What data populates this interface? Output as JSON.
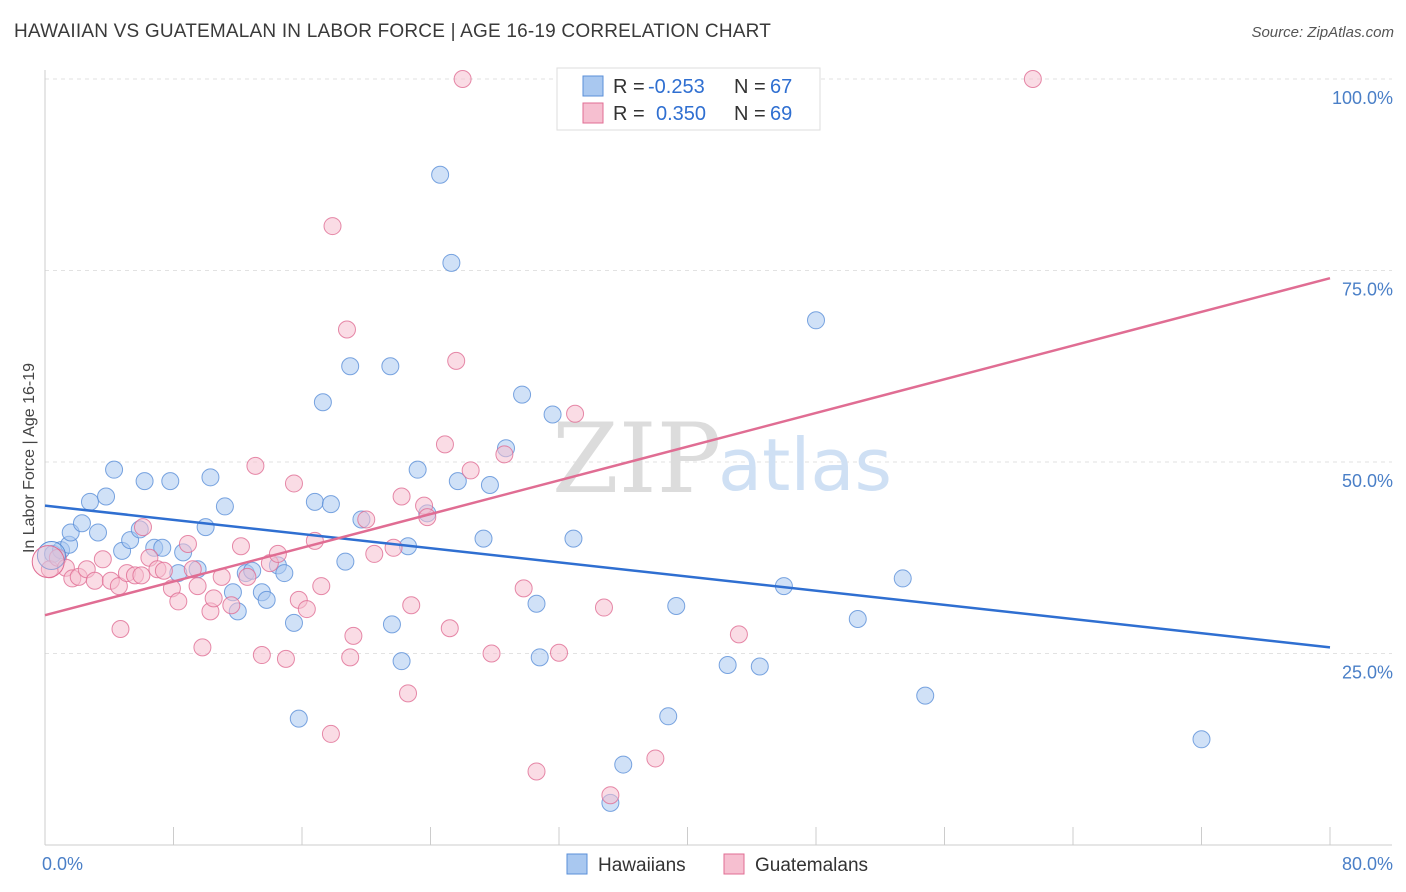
{
  "title": "HAWAIIAN VS GUATEMALAN IN LABOR FORCE | AGE 16-19 CORRELATION CHART",
  "source": "Source: ZipAtlas.com",
  "watermark": {
    "zip": "ZIP",
    "atlas": "atlas"
  },
  "legend": {
    "rows": [
      {
        "r_label": "R =",
        "r_value": "-0.253",
        "n_label": "N =",
        "n_value": "67",
        "color": "#a9c8f0",
        "stroke": "#5a8fd8"
      },
      {
        "r_label": "R =",
        "r_value": "0.350",
        "n_label": "N =",
        "n_value": "69",
        "color": "#f6bfd0",
        "stroke": "#e06d93"
      }
    ]
  },
  "bottom_legend": [
    {
      "label": "Hawaiians",
      "color": "#a9c8f0",
      "stroke": "#5a8fd8"
    },
    {
      "label": "Guatemalans",
      "color": "#f6bfd0",
      "stroke": "#e06d93"
    }
  ],
  "chart_data": {
    "type": "scatter",
    "ylabel": "In Labor Force | Age 16-19",
    "xlim": [
      0,
      80
    ],
    "ylim": [
      0,
      102
    ],
    "x_tick_labels": [
      {
        "value": 0,
        "label": "0.0%"
      },
      {
        "value": 80,
        "label": "80.0%"
      }
    ],
    "y_tick_labels": [
      {
        "value": 25,
        "label": "25.0%"
      },
      {
        "value": 50,
        "label": "50.0%"
      },
      {
        "value": 75,
        "label": "75.0%"
      },
      {
        "value": 100,
        "label": "100.0%"
      }
    ],
    "grid": true,
    "series": [
      {
        "name": "Hawaiians",
        "color": "#a9c8f0",
        "stroke": "#5a8fd8",
        "line_color": "#2f6fd1",
        "trend": [
          [
            0,
            44.3
          ],
          [
            80,
            25.8
          ]
        ],
        "points": [
          [
            0.5,
            38.0
          ],
          [
            1.0,
            38.5
          ],
          [
            1.5,
            39.2
          ],
          [
            1.6,
            40.8
          ],
          [
            2.3,
            42.0
          ],
          [
            2.8,
            44.8
          ],
          [
            3.3,
            40.8
          ],
          [
            3.8,
            45.5
          ],
          [
            4.3,
            49.0
          ],
          [
            4.8,
            38.4
          ],
          [
            5.3,
            39.8
          ],
          [
            5.9,
            41.2
          ],
          [
            6.2,
            47.5
          ],
          [
            6.8,
            38.8
          ],
          [
            7.3,
            38.8
          ],
          [
            7.8,
            47.5
          ],
          [
            8.3,
            35.5
          ],
          [
            8.6,
            38.2
          ],
          [
            9.5,
            36.0
          ],
          [
            10.0,
            41.5
          ],
          [
            10.3,
            48.0
          ],
          [
            11.2,
            44.2
          ],
          [
            11.7,
            33.0
          ],
          [
            12.0,
            30.5
          ],
          [
            12.5,
            35.5
          ],
          [
            12.9,
            35.8
          ],
          [
            13.5,
            33.0
          ],
          [
            13.8,
            32.0
          ],
          [
            14.5,
            36.5
          ],
          [
            14.9,
            35.5
          ],
          [
            15.5,
            29.0
          ],
          [
            15.8,
            16.5
          ],
          [
            16.8,
            44.8
          ],
          [
            17.3,
            57.8
          ],
          [
            17.8,
            44.5
          ],
          [
            18.7,
            37.0
          ],
          [
            19.0,
            62.5
          ],
          [
            19.7,
            42.5
          ],
          [
            21.5,
            62.5
          ],
          [
            21.6,
            28.8
          ],
          [
            22.2,
            24.0
          ],
          [
            22.6,
            39.0
          ],
          [
            23.2,
            49.0
          ],
          [
            23.8,
            43.3
          ],
          [
            24.6,
            87.5
          ],
          [
            25.3,
            76.0
          ],
          [
            25.7,
            47.5
          ],
          [
            27.3,
            40.0
          ],
          [
            27.7,
            47.0
          ],
          [
            28.7,
            51.8
          ],
          [
            29.7,
            58.8
          ],
          [
            30.6,
            31.5
          ],
          [
            30.8,
            24.5
          ],
          [
            31.6,
            56.2
          ],
          [
            32.9,
            40.0
          ],
          [
            36.0,
            10.5
          ],
          [
            35.2,
            5.5
          ],
          [
            38.8,
            16.8
          ],
          [
            39.3,
            31.2
          ],
          [
            42.5,
            23.5
          ],
          [
            44.5,
            23.3
          ],
          [
            46.0,
            33.8
          ],
          [
            48.0,
            68.5
          ],
          [
            50.6,
            29.5
          ],
          [
            53.4,
            34.8
          ],
          [
            54.8,
            19.5
          ],
          [
            72.0,
            13.8
          ]
        ]
      },
      {
        "name": "Guatemalans",
        "color": "#f6bfd0",
        "stroke": "#e06d93",
        "line_color": "#e06d93",
        "trend": [
          [
            0,
            30.0
          ],
          [
            80,
            74.0
          ]
        ],
        "points": [
          [
            0.3,
            36.0
          ],
          [
            0.8,
            37.5
          ],
          [
            1.3,
            36.2
          ],
          [
            1.7,
            34.8
          ],
          [
            2.1,
            35.0
          ],
          [
            2.6,
            36.0
          ],
          [
            3.1,
            34.5
          ],
          [
            3.6,
            37.3
          ],
          [
            4.1,
            34.5
          ],
          [
            4.6,
            33.8
          ],
          [
            4.7,
            28.2
          ],
          [
            5.1,
            35.5
          ],
          [
            5.6,
            35.2
          ],
          [
            6.0,
            35.2
          ],
          [
            6.1,
            41.5
          ],
          [
            6.5,
            37.5
          ],
          [
            7.0,
            36.0
          ],
          [
            7.4,
            35.8
          ],
          [
            7.9,
            33.5
          ],
          [
            8.3,
            31.8
          ],
          [
            8.9,
            39.3
          ],
          [
            9.2,
            36.0
          ],
          [
            9.5,
            33.8
          ],
          [
            9.8,
            25.8
          ],
          [
            10.3,
            30.5
          ],
          [
            10.5,
            32.2
          ],
          [
            11.0,
            35.0
          ],
          [
            11.6,
            31.3
          ],
          [
            12.2,
            39.0
          ],
          [
            12.6,
            35.0
          ],
          [
            13.1,
            49.5
          ],
          [
            13.5,
            24.8
          ],
          [
            14.0,
            36.8
          ],
          [
            14.5,
            38.0
          ],
          [
            15.0,
            24.3
          ],
          [
            15.5,
            47.2
          ],
          [
            15.8,
            32.0
          ],
          [
            16.3,
            30.8
          ],
          [
            16.8,
            39.7
          ],
          [
            17.2,
            33.8
          ],
          [
            17.8,
            14.5
          ],
          [
            17.9,
            80.8
          ],
          [
            18.8,
            67.3
          ],
          [
            19.0,
            24.5
          ],
          [
            19.2,
            27.3
          ],
          [
            20.0,
            42.5
          ],
          [
            20.5,
            38.0
          ],
          [
            21.7,
            38.8
          ],
          [
            22.2,
            45.5
          ],
          [
            22.6,
            19.8
          ],
          [
            22.8,
            31.3
          ],
          [
            23.6,
            44.3
          ],
          [
            23.8,
            42.8
          ],
          [
            24.9,
            52.3
          ],
          [
            25.2,
            28.3
          ],
          [
            25.6,
            63.2
          ],
          [
            26.0,
            100.0
          ],
          [
            26.5,
            48.9
          ],
          [
            27.8,
            25.0
          ],
          [
            28.6,
            51.0
          ],
          [
            29.8,
            33.5
          ],
          [
            30.6,
            9.6
          ],
          [
            32.0,
            25.1
          ],
          [
            33.0,
            56.3
          ],
          [
            34.8,
            31.0
          ],
          [
            35.2,
            6.5
          ],
          [
            38.0,
            11.3
          ],
          [
            43.2,
            27.5
          ],
          [
            61.5,
            100.0
          ]
        ]
      }
    ]
  }
}
